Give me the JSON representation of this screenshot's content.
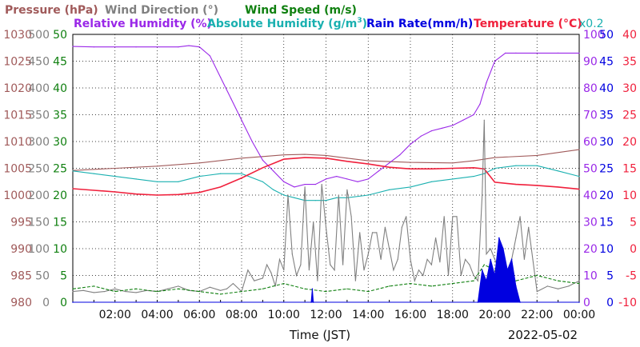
{
  "chart_data": {
    "type": "line",
    "xlabel": "Time (JST)",
    "date": "2022-05-02",
    "x_ticks": [
      "02:00",
      "04:00",
      "06:00",
      "08:00",
      "10:00",
      "12:00",
      "14:00",
      "16:00",
      "18:00",
      "20:00",
      "22:00",
      "00:00"
    ],
    "x_range_hours": [
      0,
      24
    ],
    "grid": true,
    "legend": {
      "pressure": "Pressure (hPa)",
      "wind_direction": "Wind Direction (°)",
      "wind_speed": "Wind Speed (m/s)",
      "relative_humidity": "Relative Humidity (%)",
      "absolute_humidity_prefix": "Absolute Humidity (g/m",
      "absolute_humidity_sup": "3",
      "absolute_humidity_suffix": ")",
      "rain_rate": "Rain Rate(mm/h)",
      "temperature": "Temperature (°C)",
      "abs_humidity_scale": "x0.2"
    },
    "axes": {
      "pressure": {
        "label": "Pressure (hPa)",
        "ylim": [
          980,
          1030
        ],
        "ticks": [
          "980",
          "985",
          "990",
          "995",
          "1000",
          "1005",
          "1010",
          "1015",
          "1020",
          "1025",
          "1030"
        ]
      },
      "wind_direction": {
        "label": "Wind Direction (°)",
        "ylim": [
          0,
          500
        ],
        "ticks": [
          "0",
          "50",
          "100",
          "150",
          "200",
          "250",
          "300",
          "350",
          "400",
          "450",
          "500"
        ]
      },
      "wind_speed": {
        "label": "Wind Speed (m/s)",
        "ylim": [
          0,
          50
        ],
        "ticks": [
          "0",
          "5",
          "10",
          "15",
          "20",
          "25",
          "30",
          "35",
          "40",
          "45",
          "50"
        ]
      },
      "relative_humidity": {
        "label": "Relative Humidity (%)",
        "ylim": [
          0,
          100
        ],
        "ticks": [
          "0",
          "10",
          "20",
          "30",
          "40",
          "50",
          "60",
          "70",
          "80",
          "90",
          "100"
        ]
      },
      "rain_rate": {
        "label": "Rain Rate(mm/h)",
        "ylim": [
          0,
          50
        ],
        "ticks": [
          "0",
          "5",
          "10",
          "15",
          "20",
          "25",
          "30",
          "35",
          "40",
          "45",
          "50"
        ]
      },
      "temperature": {
        "label": "Temperature (°C)",
        "ylim": [
          -10,
          40
        ],
        "ticks": [
          "-10",
          "-5",
          "0",
          "5",
          "10",
          "15",
          "20",
          "25",
          "30",
          "35",
          "40"
        ]
      }
    },
    "series": [
      {
        "name": "Pressure (hPa)",
        "axis": "pressure",
        "color": "#a05a5a",
        "x": [
          0,
          2,
          4,
          6,
          8,
          9,
          10,
          11,
          12,
          13,
          14,
          16,
          18,
          19,
          20,
          22,
          24
        ],
        "y": [
          1004.6,
          1005.0,
          1005.4,
          1006.0,
          1006.9,
          1007.2,
          1007.5,
          1007.6,
          1007.4,
          1006.9,
          1006.4,
          1006.1,
          1006.0,
          1006.4,
          1007.0,
          1007.4,
          1008.5
        ]
      },
      {
        "name": "Relative Humidity (%)",
        "axis": "relative_humidity",
        "color": "#9a28e8",
        "x": [
          0,
          1,
          3,
          5,
          5.5,
          6,
          6.5,
          7,
          7.5,
          8,
          8.5,
          9,
          9.5,
          10,
          10.5,
          11,
          11.5,
          12,
          12.5,
          13,
          13.5,
          14,
          14.5,
          15,
          15.5,
          16,
          16.5,
          17,
          17.5,
          18,
          18.5,
          19,
          19.3,
          19.6,
          20,
          20.5,
          21,
          22,
          23,
          24
        ],
        "y": [
          95.5,
          95.3,
          95.3,
          95.3,
          95.8,
          95.3,
          92,
          84,
          76,
          68,
          60,
          53,
          49,
          45,
          43,
          44,
          44,
          46,
          47,
          46,
          45,
          46,
          49,
          52,
          55,
          59,
          62,
          64,
          65,
          66,
          68,
          70,
          74,
          82,
          90,
          93,
          93,
          93,
          93,
          93
        ]
      },
      {
        "name": "Absolute Humidity (g/m3)",
        "axis": "relative_humidity",
        "color": "#1ab0b0",
        "x": [
          0,
          1,
          2,
          3,
          4,
          5,
          6,
          7,
          8,
          9,
          9.5,
          10,
          10.5,
          11,
          11.5,
          12,
          12.5,
          13,
          14,
          15,
          16,
          17,
          18,
          19,
          19.5,
          20,
          21,
          22,
          23,
          24
        ],
        "y": [
          49,
          48,
          47,
          46,
          45,
          45,
          47,
          48,
          48,
          45,
          42,
          40,
          39,
          38,
          38,
          38,
          39,
          39,
          40,
          42,
          43,
          45,
          46,
          47,
          48,
          50,
          51,
          51,
          49,
          47
        ]
      },
      {
        "name": "Temperature (°C)",
        "axis": "temperature",
        "color": "#f0203c",
        "x": [
          0,
          1,
          2,
          3,
          4,
          5,
          6,
          7,
          8,
          9,
          10,
          11,
          12,
          13,
          14,
          15,
          16,
          17,
          18,
          19,
          19.5,
          20,
          21,
          22,
          23,
          24
        ],
        "y": [
          11.2,
          10.9,
          10.6,
          10.2,
          10.0,
          10.1,
          10.5,
          11.5,
          13.2,
          15.1,
          16.7,
          17.0,
          16.9,
          16.3,
          15.8,
          15.2,
          14.9,
          14.9,
          15.0,
          15.1,
          14.9,
          12.4,
          12.0,
          11.8,
          11.5,
          11.1
        ]
      },
      {
        "name": "Wind Direction (°)",
        "axis": "wind_direction",
        "color": "#808080",
        "x": [
          0,
          0.5,
          1,
          1.5,
          2,
          2.5,
          3,
          3.5,
          4,
          4.5,
          5,
          5.5,
          6,
          6.5,
          7,
          7.3,
          7.6,
          8,
          8.3,
          8.6,
          9,
          9.2,
          9.4,
          9.6,
          9.8,
          10,
          10.2,
          10.4,
          10.6,
          10.8,
          11,
          11.2,
          11.4,
          11.6,
          11.8,
          12,
          12.2,
          12.4,
          12.6,
          12.8,
          13,
          13.2,
          13.4,
          13.6,
          13.8,
          14,
          14.2,
          14.4,
          14.6,
          14.8,
          15,
          15.2,
          15.4,
          15.6,
          15.8,
          16,
          16.2,
          16.4,
          16.6,
          16.8,
          17,
          17.2,
          17.4,
          17.6,
          17.8,
          18,
          18.2,
          18.4,
          18.6,
          18.8,
          19,
          19.2,
          19.4,
          19.5,
          19.6,
          19.8,
          20,
          20.2,
          20.4,
          20.6,
          20.8,
          21,
          21.2,
          21.4,
          21.6,
          21.8,
          22,
          22.5,
          23,
          23.5,
          24
        ],
        "y": [
          20,
          22,
          18,
          20,
          25,
          20,
          18,
          22,
          20,
          25,
          30,
          22,
          20,
          28,
          22,
          25,
          35,
          20,
          60,
          40,
          45,
          70,
          55,
          30,
          80,
          60,
          200,
          90,
          50,
          70,
          215,
          60,
          150,
          40,
          220,
          140,
          70,
          60,
          200,
          70,
          210,
          160,
          40,
          130,
          60,
          90,
          130,
          130,
          80,
          140,
          100,
          60,
          80,
          140,
          160,
          80,
          40,
          60,
          50,
          80,
          70,
          120,
          75,
          160,
          50,
          160,
          160,
          50,
          80,
          70,
          50,
          40,
          200,
          340,
          90,
          100,
          80,
          60,
          40,
          60,
          80,
          120,
          160,
          80,
          140,
          80,
          20,
          30,
          25,
          30,
          40
        ]
      },
      {
        "name": "Wind Speed (m/s)",
        "axis": "wind_speed",
        "color": "#108010",
        "x": [
          0,
          1,
          2,
          3,
          4,
          5,
          6,
          7,
          8,
          9,
          10,
          11,
          12,
          13,
          14,
          15,
          16,
          17,
          18,
          19,
          19.5,
          20,
          20.5,
          21,
          22,
          23,
          24
        ],
        "y": [
          2.5,
          3.0,
          2.0,
          2.5,
          2.0,
          2.5,
          2.0,
          1.5,
          2.0,
          2.5,
          3.5,
          2.5,
          2.0,
          2.5,
          2.0,
          3.0,
          3.5,
          3.0,
          3.5,
          4.0,
          7.0,
          6.0,
          5.0,
          4.0,
          5.0,
          4.0,
          3.5
        ]
      },
      {
        "name": "Rain Rate(mm/h)",
        "axis": "rain_rate",
        "color": "#0000e0",
        "x": [
          0,
          11.3,
          11.35,
          11.4,
          19.2,
          19.4,
          19.6,
          19.8,
          20,
          20.2,
          20.4,
          20.6,
          20.8,
          21,
          21.2,
          24
        ],
        "y": [
          0,
          0,
          2.5,
          0,
          0,
          6,
          4,
          8,
          5,
          12,
          10,
          6,
          8,
          3,
          0,
          0
        ]
      }
    ]
  }
}
